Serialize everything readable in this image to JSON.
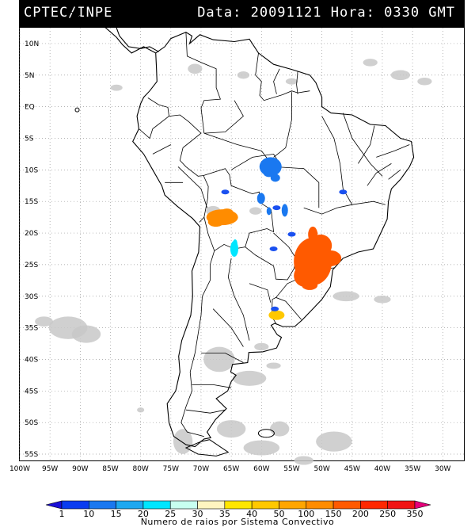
{
  "header": {
    "source": "CPTEC/INPE",
    "datetime": "Data: 20091121 Hora: 0330 GMT"
  },
  "map": {
    "lat_labels": [
      "10N",
      "5N",
      "EQ",
      "5S",
      "10S",
      "15S",
      "20S",
      "25S",
      "30S",
      "35S",
      "40S",
      "45S",
      "50S",
      "55S"
    ],
    "lat_values": [
      10,
      5,
      0,
      -5,
      -10,
      -15,
      -20,
      -25,
      -30,
      -35,
      -40,
      -45,
      -50,
      -55
    ],
    "lon_labels": [
      "100W",
      "95W",
      "90W",
      "85W",
      "80W",
      "75W",
      "70W",
      "65W",
      "60W",
      "55W",
      "50W",
      "45W",
      "40W",
      "35W",
      "30W"
    ],
    "lon_values": [
      -100,
      -95,
      -90,
      -85,
      -80,
      -75,
      -70,
      -65,
      -60,
      -55,
      -50,
      -45,
      -40,
      -35,
      -30
    ],
    "extent": {
      "lon_min": -100,
      "lon_max": -26.5,
      "lat_min": -56,
      "lat_max": 12.5
    }
  },
  "legend": {
    "title": "Numero de raios por Sistema Convectivo",
    "ticks": [
      "1",
      "10",
      "15",
      "20",
      "25",
      "30",
      "35",
      "40",
      "50",
      "100",
      "150",
      "200",
      "250",
      "350"
    ],
    "colors": [
      "#1a0fd6",
      "#0a3cf0",
      "#1a78f0",
      "#1ea8f0",
      "#00e6ff",
      "#c8fff0",
      "#fff5c0",
      "#ffe600",
      "#ffc800",
      "#ffa500",
      "#ff8c00",
      "#ff5a00",
      "#ff2800",
      "#f01414",
      "#e6007a"
    ]
  },
  "systems": [
    {
      "name": "Mato Grosso blue cluster",
      "lon": -58.5,
      "lat": -9.5,
      "value": 10
    },
    {
      "name": "Bolivia orange cluster",
      "lon": -66.5,
      "lat": -17.5,
      "value": 100
    },
    {
      "name": "Parana / Sao Paulo orange cluster",
      "lon": -51.5,
      "lat": -24.5,
      "value": 150
    },
    {
      "name": "Paraguay-Argentina cyan cluster",
      "lon": -64.5,
      "lat": -22.5,
      "value": 20
    },
    {
      "name": "Uruguay yellow cluster",
      "lon": -57.5,
      "lat": -33.0,
      "value": 40
    }
  ]
}
